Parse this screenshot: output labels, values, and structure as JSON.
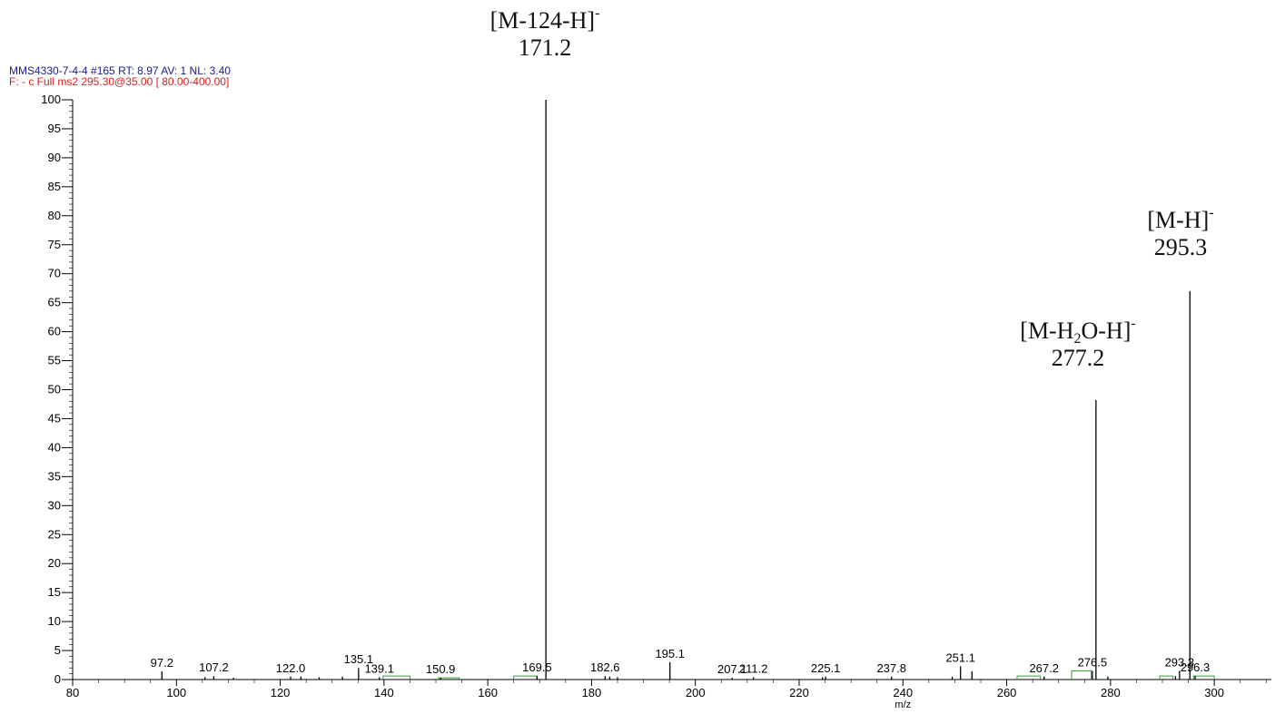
{
  "header": {
    "line1": "MMS4330-7-4-4 #165   RT: 8.97   AV: 1   NL: 3.40",
    "line2": "F: - c Full ms2 295.30@35.00 [ 80.00-400.00]"
  },
  "annotations": [
    {
      "id": "m124",
      "main": "[M-124-H]",
      "sup": "-",
      "value": "171.2"
    },
    {
      "id": "mh",
      "main": "[M-H]",
      "sup": "-",
      "value": "295.3"
    },
    {
      "id": "mh2o",
      "pre": "[M-H",
      "sub": "2",
      "post": "O-H]",
      "sup": "-",
      "value": "277.2"
    }
  ],
  "chart_data": {
    "type": "bar",
    "xlabel": "m/z",
    "ylabel": "",
    "xlim": [
      80,
      311
    ],
    "ylim": [
      0,
      100
    ],
    "x_ticks": [
      80,
      100,
      120,
      140,
      160,
      180,
      200,
      220,
      240,
      260,
      280,
      300
    ],
    "y_ticks": [
      0,
      5,
      10,
      15,
      20,
      25,
      30,
      35,
      40,
      45,
      50,
      55,
      60,
      65,
      70,
      75,
      80,
      85,
      90,
      95,
      100
    ],
    "peaks": [
      {
        "mz": 97.2,
        "intensity": 1.4,
        "label": "97.2"
      },
      {
        "mz": 105.5,
        "intensity": 0.4
      },
      {
        "mz": 107.2,
        "intensity": 0.6,
        "label": "107.2"
      },
      {
        "mz": 111.0,
        "intensity": 0.3
      },
      {
        "mz": 122.0,
        "intensity": 0.5,
        "label": "122.0"
      },
      {
        "mz": 124.0,
        "intensity": 0.5
      },
      {
        "mz": 127.5,
        "intensity": 0.4
      },
      {
        "mz": 132.0,
        "intensity": 0.5
      },
      {
        "mz": 135.1,
        "intensity": 2.0,
        "label": "135.1"
      },
      {
        "mz": 139.1,
        "intensity": 0.4,
        "label": "139.1"
      },
      {
        "mz": 150.9,
        "intensity": 0.3,
        "label": "150.9"
      },
      {
        "mz": 169.5,
        "intensity": 0.6,
        "label": "169.5"
      },
      {
        "mz": 171.2,
        "intensity": 100,
        "label": "171.2"
      },
      {
        "mz": 182.6,
        "intensity": 0.6,
        "label": "182.6"
      },
      {
        "mz": 183.5,
        "intensity": 0.5
      },
      {
        "mz": 185.0,
        "intensity": 0.4
      },
      {
        "mz": 195.1,
        "intensity": 3.0,
        "label": "195.1"
      },
      {
        "mz": 207.1,
        "intensity": 0.3,
        "label": "207.1"
      },
      {
        "mz": 211.2,
        "intensity": 0.4,
        "label": "211.2"
      },
      {
        "mz": 224.5,
        "intensity": 0.4
      },
      {
        "mz": 225.1,
        "intensity": 0.5,
        "label": "225.1"
      },
      {
        "mz": 237.8,
        "intensity": 0.5,
        "label": "237.8"
      },
      {
        "mz": 249.5,
        "intensity": 0.5
      },
      {
        "mz": 251.1,
        "intensity": 2.3,
        "label": "251.1"
      },
      {
        "mz": 253.3,
        "intensity": 1.4
      },
      {
        "mz": 267.2,
        "intensity": 0.5,
        "label": "267.2"
      },
      {
        "mz": 276.5,
        "intensity": 1.5,
        "label": "276.5"
      },
      {
        "mz": 277.2,
        "intensity": 48.2,
        "label": "277.2"
      },
      {
        "mz": 279.5,
        "intensity": 0.5
      },
      {
        "mz": 292.5,
        "intensity": 0.6
      },
      {
        "mz": 293.3,
        "intensity": 1.5,
        "label": "293.3"
      },
      {
        "mz": 295.3,
        "intensity": 67.0,
        "label": "295.3"
      },
      {
        "mz": 296.3,
        "intensity": 0.6,
        "label": "296.3"
      }
    ],
    "filled_segments": [
      {
        "from": 139.8,
        "to": 145.0,
        "level": 0.6
      },
      {
        "from": 150.5,
        "to": 154.5,
        "level": 0.3
      },
      {
        "from": 165.0,
        "to": 169.5,
        "level": 0.6
      },
      {
        "from": 262.0,
        "to": 266.5,
        "level": 0.6
      },
      {
        "from": 272.5,
        "to": 276.3,
        "level": 1.5
      },
      {
        "from": 289.5,
        "to": 292.0,
        "level": 0.6
      },
      {
        "from": 296.0,
        "to": 300.0,
        "level": 0.6
      }
    ],
    "colors": {
      "peak": "#000000",
      "segment": "#2ca02c",
      "axis": "#000000"
    }
  }
}
